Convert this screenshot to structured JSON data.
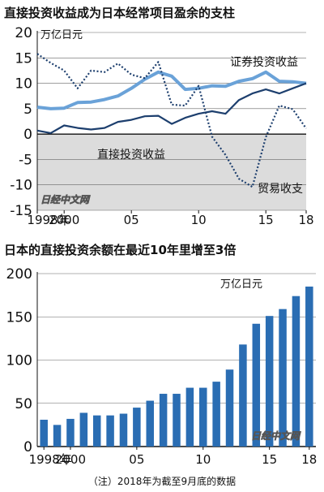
{
  "note": "（注）2018年为截至9月底的数据",
  "watermark": "日经中文网",
  "chart_data": [
    {
      "type": "line",
      "title": "直接投资收益成为日本经常项目盈余的支柱",
      "unit": "万亿日元",
      "ylim": [
        -15,
        20
      ],
      "yticks": [
        -15,
        -10,
        -5,
        0,
        5,
        10,
        15,
        20
      ],
      "xlim": [
        1998,
        2018
      ],
      "xticks": [
        1998,
        2000,
        2005,
        2010,
        2015,
        2018
      ],
      "xtick_labels": [
        "1998年",
        "2000",
        "05",
        "10",
        "15",
        "18"
      ],
      "negative_shading": true,
      "x": [
        1998,
        1999,
        2000,
        2001,
        2002,
        2003,
        2004,
        2005,
        2006,
        2007,
        2008,
        2009,
        2010,
        2011,
        2012,
        2013,
        2014,
        2015,
        2016,
        2017,
        2018
      ],
      "series": [
        {
          "name": "证券投资收益",
          "color": "#6aa2d8",
          "style": "solid-thick",
          "values": [
            5.3,
            5.0,
            5.1,
            6.2,
            6.3,
            6.8,
            7.5,
            9.0,
            10.8,
            12.2,
            11.4,
            8.8,
            9.0,
            9.5,
            9.4,
            10.4,
            10.9,
            12.2,
            10.4,
            10.3,
            10.0
          ]
        },
        {
          "name": "直接投资收益",
          "color": "#1d3f6e",
          "style": "solid",
          "values": [
            0.7,
            0.2,
            1.7,
            1.2,
            0.9,
            1.2,
            2.4,
            2.8,
            3.5,
            3.6,
            2.0,
            3.2,
            4.0,
            4.5,
            4.0,
            6.7,
            8.0,
            8.8,
            8.0,
            9.0,
            10.0
          ]
        },
        {
          "name": "贸易收支",
          "color": "#1d3f6e",
          "style": "dotted",
          "values": [
            15.8,
            14.0,
            12.5,
            9.0,
            12.5,
            12.2,
            13.9,
            11.7,
            11.0,
            14.2,
            5.8,
            5.6,
            9.5,
            -0.5,
            -4.1,
            -8.8,
            -10.4,
            -0.6,
            5.6,
            4.9,
            1.1
          ]
        }
      ]
    },
    {
      "type": "bar",
      "title": "日本的直接投资余额在最近10年里增至3倍",
      "unit": "万亿日元",
      "ylim": [
        0,
        200
      ],
      "yticks": [
        0,
        50,
        100,
        150,
        200
      ],
      "xtick_labels": [
        "1998年",
        "2000",
        "05",
        "10",
        "15",
        "18"
      ],
      "xtick_categories": [
        1998,
        2000,
        2005,
        2010,
        2015,
        2018
      ],
      "color": "#2a6db3",
      "categories": [
        1998,
        1999,
        2000,
        2001,
        2002,
        2003,
        2004,
        2005,
        2006,
        2007,
        2008,
        2009,
        2010,
        2011,
        2012,
        2013,
        2014,
        2015,
        2016,
        2017,
        2018
      ],
      "values": [
        31,
        25,
        32,
        39,
        36,
        36,
        38,
        45,
        53,
        61,
        61,
        68,
        68,
        75,
        89,
        118,
        142,
        151,
        159,
        174,
        185
      ]
    }
  ]
}
